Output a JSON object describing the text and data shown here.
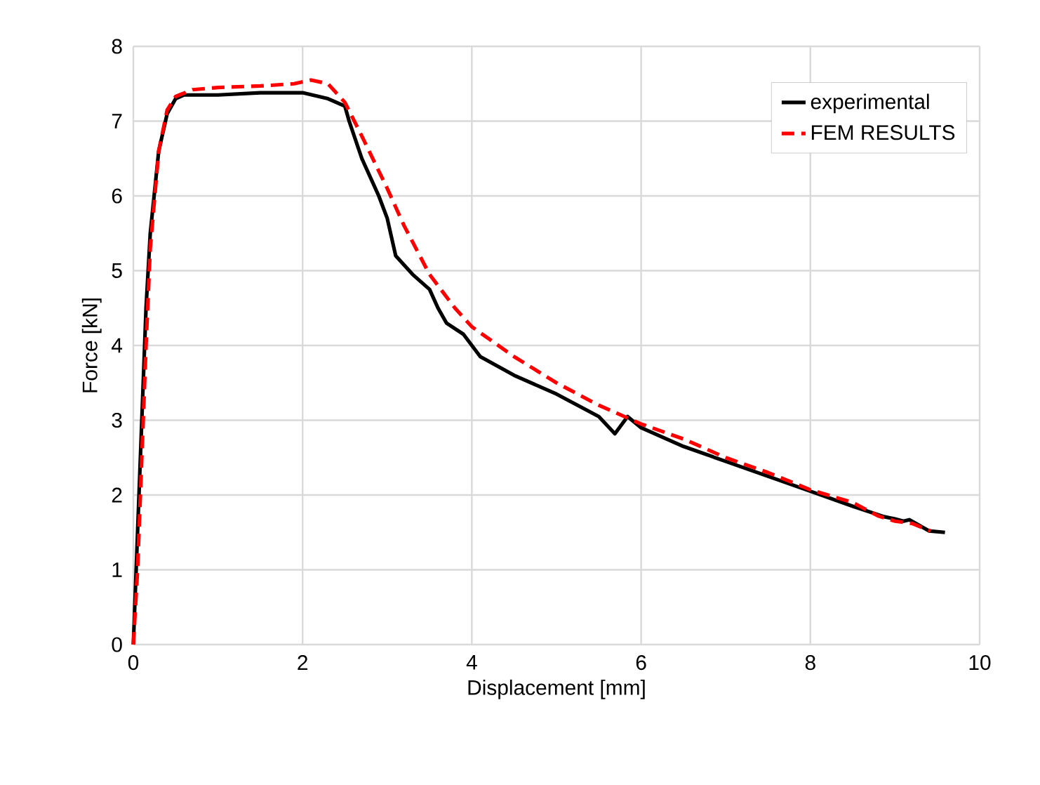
{
  "chart_data": {
    "type": "line",
    "xlabel": "Displacement [mm]",
    "ylabel": "Force [kN]",
    "xlim": [
      0,
      10
    ],
    "xticks": [
      0,
      2,
      4,
      6,
      8,
      10
    ],
    "ylim": [
      0,
      8
    ],
    "yticks": [
      0,
      1,
      2,
      3,
      4,
      5,
      6,
      7,
      8
    ],
    "grid": true,
    "legend": "top right",
    "series": [
      {
        "name": "experimental",
        "color": "#000000",
        "line_style": "solid",
        "x": [
          0,
          0.05,
          0.1,
          0.15,
          0.2,
          0.3,
          0.4,
          0.5,
          0.6,
          1,
          1.5,
          2,
          2.3,
          2.5,
          2.55,
          2.7,
          2.9,
          3.0,
          3.1,
          3.3,
          3.5,
          3.6,
          3.7,
          3.9,
          4.1,
          4.5,
          5,
          5.5,
          5.69,
          5.84,
          6,
          6.5,
          7,
          7.5,
          8,
          8.5,
          8.87,
          9.0,
          9.1,
          9.17,
          9.4,
          9.59
        ],
        "values": [
          0,
          1.5,
          3,
          4.5,
          5.5,
          6.6,
          7.1,
          7.3,
          7.35,
          7.35,
          7.38,
          7.38,
          7.3,
          7.2,
          7.0,
          6.5,
          6.0,
          5.7,
          5.2,
          4.95,
          4.75,
          4.5,
          4.3,
          4.15,
          3.85,
          3.6,
          3.35,
          3.05,
          2.82,
          3.05,
          2.9,
          2.65,
          2.45,
          2.25,
          2.05,
          1.85,
          1.71,
          1.68,
          1.65,
          1.67,
          1.52,
          1.5
        ]
      },
      {
        "name": "FEM RESULTS",
        "color": "#ff0000",
        "line_style": "dashed",
        "x": [
          0,
          0.05,
          0.1,
          0.15,
          0.2,
          0.3,
          0.4,
          0.5,
          0.7,
          1,
          1.5,
          1.9,
          2.1,
          2.3,
          2.5,
          2.7,
          3,
          3.2,
          3.5,
          3.8,
          4,
          4.5,
          5,
          5.5,
          6,
          6.5,
          7,
          7.5,
          8,
          8.5,
          8.8,
          9,
          9.2,
          9.42
        ],
        "values": [
          0,
          1,
          2.5,
          4,
          5.3,
          6.6,
          7.15,
          7.33,
          7.42,
          7.45,
          7.47,
          7.5,
          7.55,
          7.5,
          7.25,
          6.8,
          6.1,
          5.6,
          4.95,
          4.5,
          4.25,
          3.85,
          3.5,
          3.2,
          2.95,
          2.75,
          2.5,
          2.3,
          2.07,
          1.9,
          1.72,
          1.65,
          1.62,
          1.52
        ]
      }
    ]
  }
}
